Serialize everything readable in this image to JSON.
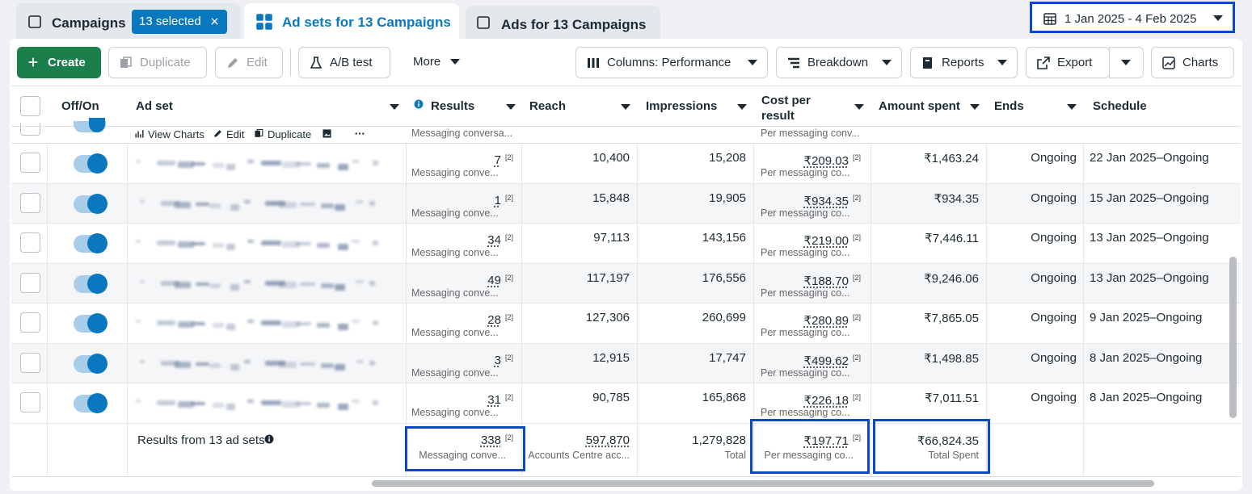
{
  "tabs": [
    {
      "label": "Campaigns",
      "badge": "13 selected"
    },
    {
      "label": "Ad sets for 13 Campaigns"
    },
    {
      "label": "Ads for 13 Campaigns"
    }
  ],
  "date_range": "1 Jan 2025 - 4 Feb 2025",
  "toolbar": {
    "create": "Create",
    "duplicate": "Duplicate",
    "edit": "Edit",
    "ab_test": "A/B test",
    "more": "More",
    "columns": "Columns: Performance",
    "breakdown": "Breakdown",
    "reports": "Reports",
    "export": "Export",
    "charts": "Charts"
  },
  "table": {
    "headers": [
      "Off/On",
      "Ad set",
      "Results",
      "Reach",
      "Impressions",
      "Cost per result",
      "Amount spent",
      "Ends",
      "Schedule"
    ],
    "row_actions": [
      "View Charts",
      "Edit",
      "Duplicate"
    ],
    "partial_row": {
      "results_label": "Messaging conversa...",
      "cost_label": "Per messaging conv..."
    },
    "footnote": "[2]",
    "rows": [
      {
        "results": "7",
        "results_label": "Messaging conve...",
        "reach": "10,400",
        "impressions": "15,208",
        "cost": "₹209.03",
        "cost_label": "Per messaging co...",
        "amount": "₹1,463.24",
        "ends": "Ongoing",
        "schedule": "22 Jan 2025–Ongoing"
      },
      {
        "results": "1",
        "results_label": "Messaging conve...",
        "reach": "15,848",
        "impressions": "19,905",
        "cost": "₹934.35",
        "cost_label": "Per messaging co...",
        "amount": "₹934.35",
        "ends": "Ongoing",
        "schedule": "15 Jan 2025–Ongoing"
      },
      {
        "results": "34",
        "results_label": "Messaging conve...",
        "reach": "97,113",
        "impressions": "143,156",
        "cost": "₹219.00",
        "cost_label": "Per messaging co...",
        "amount": "₹7,446.11",
        "ends": "Ongoing",
        "schedule": "13 Jan 2025–Ongoing"
      },
      {
        "results": "49",
        "results_label": "Messaging conve...",
        "reach": "117,197",
        "impressions": "176,556",
        "cost": "₹188.70",
        "cost_label": "Per messaging co...",
        "amount": "₹9,246.06",
        "ends": "Ongoing",
        "schedule": "13 Jan 2025–Ongoing"
      },
      {
        "results": "28",
        "results_label": "Messaging conve...",
        "reach": "127,306",
        "impressions": "260,699",
        "cost": "₹280.89",
        "cost_label": "Per messaging co...",
        "amount": "₹7,865.05",
        "ends": "Ongoing",
        "schedule": "9 Jan 2025–Ongoing"
      },
      {
        "results": "3",
        "results_label": "Messaging conve...",
        "reach": "12,915",
        "impressions": "17,747",
        "cost": "₹499.62",
        "cost_label": "Per messaging co...",
        "amount": "₹1,498.85",
        "ends": "Ongoing",
        "schedule": "8 Jan 2025–Ongoing"
      },
      {
        "results": "31",
        "results_label": "Messaging conve...",
        "reach": "90,785",
        "impressions": "165,868",
        "cost": "₹226.18",
        "cost_label": "Per messaging co...",
        "amount": "₹7,011.51",
        "ends": "Ongoing",
        "schedule": "8 Jan 2025–Ongoing"
      }
    ],
    "totals": {
      "label": "Results from 13 ad sets",
      "results": "338",
      "results_label": "Messaging conve...",
      "reach": "597,870",
      "reach_label": "Accounts Centre acc...",
      "impressions": "1,279,828",
      "impressions_label": "Total",
      "cost": "₹197.71",
      "cost_label": "Per messaging co...",
      "amount": "₹66,824.35",
      "amount_label": "Total Spent"
    }
  }
}
